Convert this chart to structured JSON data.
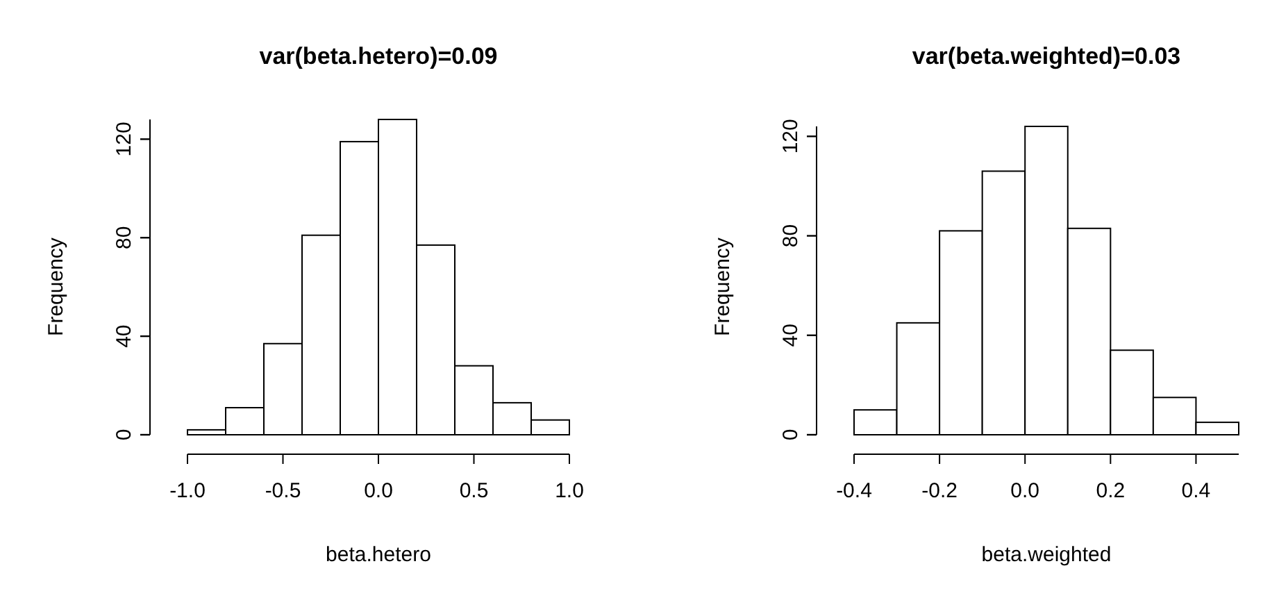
{
  "chart_data": [
    {
      "type": "histogram",
      "title": "var(beta.hetero)=0.09",
      "xlabel": "beta.hetero",
      "ylabel": "Frequency",
      "bins": [
        -1,
        -0.8,
        -0.6,
        -0.4,
        -0.2,
        0,
        0.2,
        0.4,
        0.6,
        0.8,
        1
      ],
      "values": [
        2,
        11,
        37,
        81,
        119,
        128,
        77,
        28,
        13,
        6
      ],
      "color": "#ffffff",
      "xlim": [
        -1,
        1
      ],
      "xticks": [
        {
          "value": -1,
          "label": "-1.0"
        },
        -0.5,
        {
          "value": 0,
          "label": "0.0"
        },
        0.5,
        {
          "value": 1,
          "label": "1.0"
        }
      ],
      "ylim": [
        0,
        128
      ],
      "yticks": [
        0,
        40,
        80,
        120
      ],
      "grid": false
    },
    {
      "type": "histogram",
      "title": "var(beta.weighted)=0.03",
      "xlabel": "beta.weighted",
      "ylabel": "Frequency",
      "bins": [
        -0.4,
        -0.3,
        -0.2,
        -0.1,
        0,
        0.1,
        0.2,
        0.3,
        0.4,
        0.5
      ],
      "values": [
        10,
        45,
        82,
        106,
        124,
        83,
        34,
        15,
        5
      ],
      "color": "#ffffff",
      "xlim": [
        -0.4,
        0.5
      ],
      "xticks": [
        -0.4,
        -0.2,
        {
          "value": 0,
          "label": "0.0"
        },
        0.2,
        0.4
      ],
      "ylim": [
        0,
        124
      ],
      "yticks": [
        0,
        40,
        80,
        120
      ],
      "grid": false
    }
  ]
}
